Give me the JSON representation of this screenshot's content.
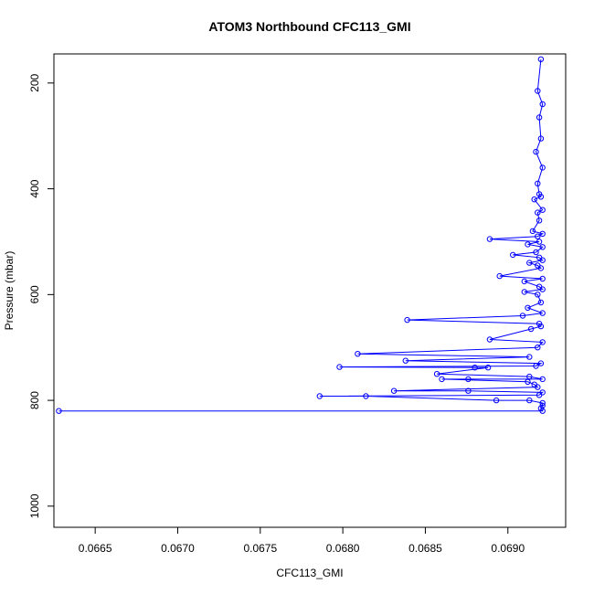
{
  "chart_data": {
    "type": "line",
    "title": "ATOM3 Northbound CFC113_GMI",
    "xlabel": "CFC113_GMI",
    "ylabel": "Pressure (mbar)",
    "xlim": [
      0.06625,
      0.06935
    ],
    "ylim": [
      1040,
      145
    ],
    "y_inverted": true,
    "x_ticks": [
      0.0665,
      0.067,
      0.0675,
      0.068,
      0.0685,
      0.069
    ],
    "x_tick_labels": [
      "0.0665",
      "0.0670",
      "0.0675",
      "0.0680",
      "0.0685",
      "0.0690"
    ],
    "y_ticks": [
      200,
      400,
      600,
      800,
      1000
    ],
    "y_tick_labels": [
      "200",
      "400",
      "600",
      "800",
      "1000"
    ],
    "grid": false,
    "legend": "none",
    "series_color": "#0000ff",
    "marker": "open-circle",
    "series": [
      {
        "x": [
          0.0692,
          0.06918,
          0.06921,
          0.06919,
          0.0692,
          0.06917,
          0.06921,
          0.06918,
          0.06919,
          0.0692,
          0.06916,
          0.06921,
          0.06918,
          0.06919,
          0.06915,
          0.06921,
          0.06918,
          0.06889,
          0.06919,
          0.06912,
          0.06921,
          0.06917,
          0.06903,
          0.06919,
          0.06921,
          0.06913,
          0.06918,
          0.0692,
          0.06895,
          0.06921,
          0.0691,
          0.06919,
          0.06921,
          0.0691,
          0.06918,
          0.0692,
          0.06912,
          0.06921,
          0.06909,
          0.06839,
          0.06919,
          0.0692,
          0.06914,
          0.06889,
          0.06921,
          0.06918,
          0.06809,
          0.06913,
          0.06838,
          0.0692,
          0.06917,
          0.06798,
          0.0688,
          0.06888,
          0.06857,
          0.06913,
          0.06921,
          0.06876,
          0.0686,
          0.06912,
          0.06916,
          0.06918,
          0.06831,
          0.06876,
          0.06921,
          0.06919,
          0.06786,
          0.06814,
          0.06893,
          0.06913,
          0.06921,
          0.06921,
          0.0692,
          0.06921,
          0.06628
        ],
        "y": [
          155,
          215,
          240,
          265,
          305,
          330,
          360,
          390,
          410,
          415,
          420,
          440,
          445,
          460,
          480,
          485,
          490,
          495,
          500,
          505,
          510,
          520,
          525,
          530,
          535,
          540,
          545,
          550,
          565,
          570,
          575,
          585,
          590,
          595,
          600,
          615,
          625,
          635,
          640,
          648,
          655,
          660,
          665,
          685,
          690,
          700,
          712,
          718,
          725,
          730,
          735,
          737,
          738,
          738,
          750,
          755,
          760,
          760,
          760,
          765,
          770,
          775,
          782,
          782,
          785,
          790,
          792,
          792,
          800,
          800,
          805,
          810,
          815,
          820,
          820
        ]
      }
    ]
  }
}
